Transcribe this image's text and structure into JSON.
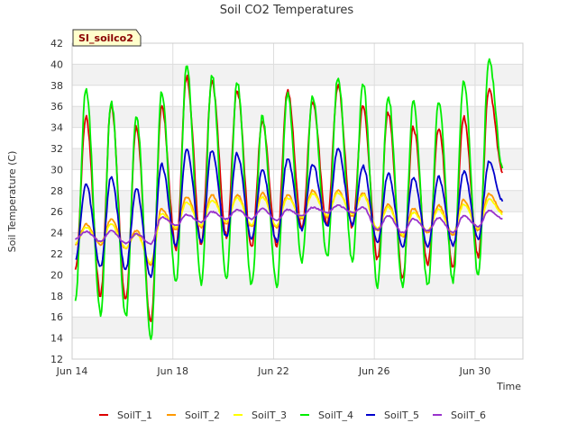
{
  "chart_data": {
    "type": "line",
    "title": "Soil CO2 Temperatures",
    "xlabel": "Time",
    "ylabel": "Soil Temperature (C)",
    "badge": "SI_soilco2",
    "ylim": [
      12,
      42
    ],
    "yticks": [
      12,
      14,
      16,
      18,
      20,
      22,
      24,
      26,
      28,
      30,
      32,
      34,
      36,
      38,
      40,
      42
    ],
    "xlim": [
      14,
      31.9
    ],
    "xticks": [
      {
        "label": "Jun 14",
        "day": 14
      },
      {
        "label": "Jun 18",
        "day": 18
      },
      {
        "label": "Jun 22",
        "day": 22
      },
      {
        "label": "Jun 26",
        "day": 26
      },
      {
        "label": "Jun 30",
        "day": 30
      }
    ],
    "grid": true,
    "legend_position": "bottom",
    "x_units": "day of June",
    "peak_days": [
      14.55,
      15.55,
      16.55,
      17.55,
      18.55,
      19.55,
      20.55,
      21.55,
      22.55,
      23.55,
      24.55,
      25.55,
      26.55,
      27.55,
      28.55,
      29.55,
      30.55
    ],
    "series": [
      {
        "name": "SoilT_1",
        "color": "#dd0000",
        "highs": [
          35.0,
          36.2,
          34.0,
          36.0,
          38.8,
          38.5,
          37.5,
          34.5,
          37.5,
          36.5,
          38.0,
          36.0,
          35.5,
          34.0,
          34.0,
          35.0,
          37.7
        ],
        "lows": [
          20.5,
          18.0,
          17.6,
          15.3,
          22.5,
          23.0,
          23.7,
          22.5,
          22.8,
          24.5,
          24.8,
          24.5,
          21.5,
          19.8,
          21.0,
          20.8,
          21.8
        ]
      },
      {
        "name": "SoilT_2",
        "color": "#ff9900",
        "highs": [
          24.8,
          25.3,
          24.2,
          26.2,
          27.4,
          27.6,
          27.6,
          27.8,
          27.6,
          28.0,
          28.0,
          27.8,
          26.7,
          26.3,
          26.6,
          27.1,
          27.7
        ],
        "lows": [
          22.9,
          22.9,
          22.5,
          21.0,
          24.3,
          24.5,
          24.9,
          24.6,
          24.5,
          25.3,
          25.5,
          25.6,
          24.2,
          23.6,
          24.0,
          23.8,
          24.2
        ]
      },
      {
        "name": "SoilT_3",
        "color": "#ffff00",
        "highs": [
          24.5,
          24.8,
          23.9,
          25.8,
          26.9,
          27.1,
          27.3,
          27.4,
          27.3,
          27.7,
          27.8,
          27.6,
          26.4,
          25.9,
          26.2,
          26.7,
          27.2
        ],
        "lows": [
          23.0,
          23.1,
          22.6,
          21.2,
          24.5,
          24.7,
          25.1,
          24.8,
          24.7,
          25.5,
          25.7,
          25.8,
          24.4,
          23.8,
          24.2,
          24.0,
          24.4
        ]
      },
      {
        "name": "SoilT_4",
        "color": "#00ee00",
        "highs": [
          37.8,
          36.5,
          35.2,
          37.2,
          39.8,
          39.0,
          38.4,
          35.0,
          37.2,
          37.0,
          38.8,
          38.1,
          37.0,
          36.4,
          36.5,
          38.6,
          40.5
        ],
        "lows": [
          17.8,
          16.3,
          16.0,
          14.0,
          19.3,
          19.2,
          19.6,
          19.0,
          19.0,
          21.2,
          21.6,
          21.4,
          19.0,
          18.9,
          19.0,
          19.5,
          20.0
        ]
      },
      {
        "name": "SoilT_5",
        "color": "#0000cc",
        "highs": [
          28.6,
          29.3,
          28.2,
          30.5,
          31.8,
          31.9,
          31.5,
          29.9,
          31.0,
          30.5,
          32.0,
          30.3,
          29.6,
          29.2,
          29.3,
          29.8,
          30.7
        ],
        "lows": [
          21.5,
          20.8,
          20.5,
          19.8,
          22.8,
          23.2,
          23.6,
          23.4,
          23.2,
          24.3,
          24.6,
          24.8,
          23.0,
          22.6,
          22.7,
          22.8,
          23.4
        ]
      },
      {
        "name": "SoilT_6",
        "color": "#9933cc",
        "highs": [
          24.1,
          24.2,
          23.9,
          25.5,
          25.7,
          26.0,
          26.2,
          26.3,
          26.2,
          26.4,
          26.6,
          26.4,
          25.6,
          25.3,
          25.4,
          25.6,
          26.1
        ],
        "lows": [
          23.4,
          23.2,
          23.0,
          22.9,
          24.7,
          25.0,
          25.3,
          25.3,
          25.2,
          25.6,
          25.9,
          25.9,
          24.3,
          24.0,
          24.2,
          24.0,
          24.6
        ]
      }
    ]
  }
}
